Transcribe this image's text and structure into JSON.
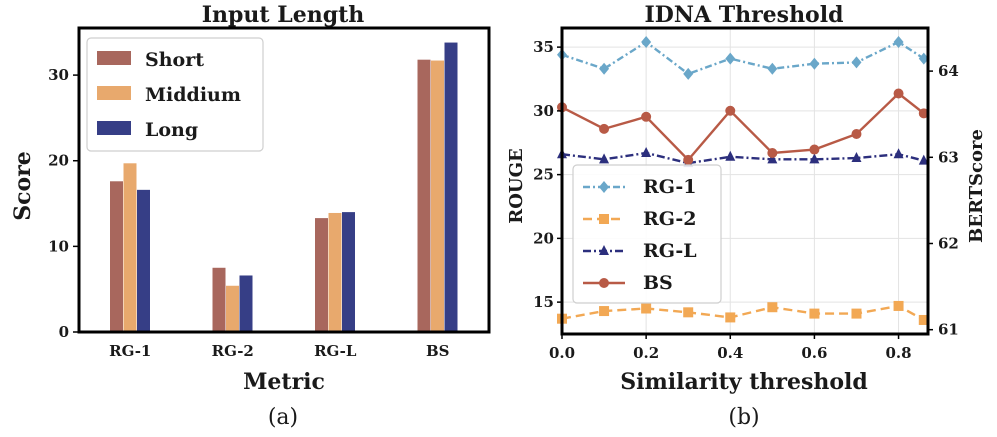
{
  "chart_data": [
    {
      "type": "bar",
      "title": "Input Length",
      "xlabel": "Metric",
      "ylabel": "Score",
      "ylim": [
        0,
        35.5
      ],
      "yticks": [
        0,
        10,
        20,
        30
      ],
      "categories": [
        "RG-1",
        "RG-2",
        "RG-L",
        "BS"
      ],
      "series": [
        {
          "name": "Short",
          "color": "#a8675d",
          "values": [
            17.6,
            7.5,
            13.3,
            31.8
          ]
        },
        {
          "name": "Middium",
          "color": "#e8a96d",
          "values": [
            19.7,
            5.4,
            13.9,
            31.7
          ]
        },
        {
          "name": "Long",
          "color": "#363e86",
          "values": [
            16.6,
            6.6,
            14.0,
            33.8
          ]
        }
      ],
      "legend_position": "top-left",
      "grid": false,
      "caption": "(a)"
    },
    {
      "type": "line",
      "title": "IDNA Threshold",
      "xlabel": "Similarity threshold",
      "ylabel": "ROUGE",
      "ylabel_right": "BERTScore",
      "x": [
        0.0,
        0.1,
        0.2,
        0.3,
        0.4,
        0.5,
        0.6,
        0.7,
        0.8,
        0.86
      ],
      "xlim": [
        0.0,
        0.87
      ],
      "xticks": [
        0.0,
        0.2,
        0.4,
        0.6,
        0.8
      ],
      "xtick_labels": [
        "0.0",
        "0.2",
        "0.4",
        "0.6",
        "0.8"
      ],
      "ylim": [
        12.5,
        36.5
      ],
      "yticks": [
        15,
        20,
        25,
        30,
        35
      ],
      "ylim_right": [
        60.95,
        64.5
      ],
      "yticks_right": [
        61,
        62,
        63,
        64
      ],
      "series": [
        {
          "name": "RG-1",
          "axis": "left",
          "color": "#6aa7c9",
          "marker": "diamond",
          "dash": "7 3 2 3",
          "values": [
            34.4,
            33.3,
            35.4,
            32.9,
            34.1,
            33.3,
            33.7,
            33.8,
            35.4,
            34.1
          ]
        },
        {
          "name": "RG-2",
          "axis": "left",
          "color": "#f2a854",
          "marker": "square",
          "dash": "9 5",
          "values": [
            13.7,
            14.3,
            14.5,
            14.2,
            13.8,
            14.6,
            14.1,
            14.1,
            14.7,
            13.6
          ]
        },
        {
          "name": "RG-L",
          "axis": "left",
          "color": "#2c2f7d",
          "marker": "triangle",
          "dash": "8 3 2 3",
          "values": [
            26.6,
            26.2,
            26.7,
            25.9,
            26.4,
            26.2,
            26.2,
            26.3,
            26.6,
            26.1
          ]
        },
        {
          "name": "BS",
          "axis": "right",
          "color": "#b85a46",
          "marker": "circle",
          "dash": "",
          "values": [
            63.58,
            63.33,
            63.47,
            62.97,
            63.54,
            63.05,
            63.09,
            63.27,
            63.74,
            63.51
          ]
        }
      ],
      "legend_position": "lower-left",
      "grid": true,
      "caption": "(b)"
    }
  ]
}
